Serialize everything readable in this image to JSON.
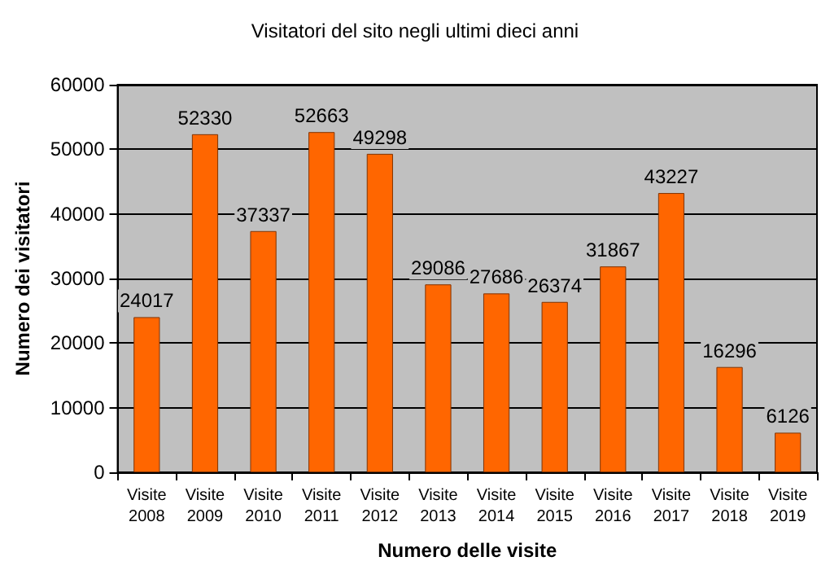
{
  "chart_data": {
    "type": "bar",
    "title": "Visitatori del sito negli ultimi dieci anni",
    "xlabel": "Numero delle visite",
    "ylabel": "Numero dei visitatori",
    "categories": [
      "Visite\n2008",
      "Visite\n2009",
      "Visite\n2010",
      "Visite\n2011",
      "Visite\n2012",
      "Visite\n2013",
      "Visite\n2014",
      "Visite\n2015",
      "Visite\n2016",
      "Visite\n2017",
      "Visite\n2018",
      "Visite\n2019"
    ],
    "values": [
      24017,
      52330,
      37337,
      52663,
      49298,
      29086,
      27686,
      26374,
      31867,
      43227,
      16296,
      6126
    ],
    "color": "#ff6600",
    "ylim": [
      0,
      60000
    ],
    "yticks": [
      0,
      10000,
      20000,
      30000,
      40000,
      50000,
      60000
    ],
    "grid": "y",
    "data_labels": true
  }
}
